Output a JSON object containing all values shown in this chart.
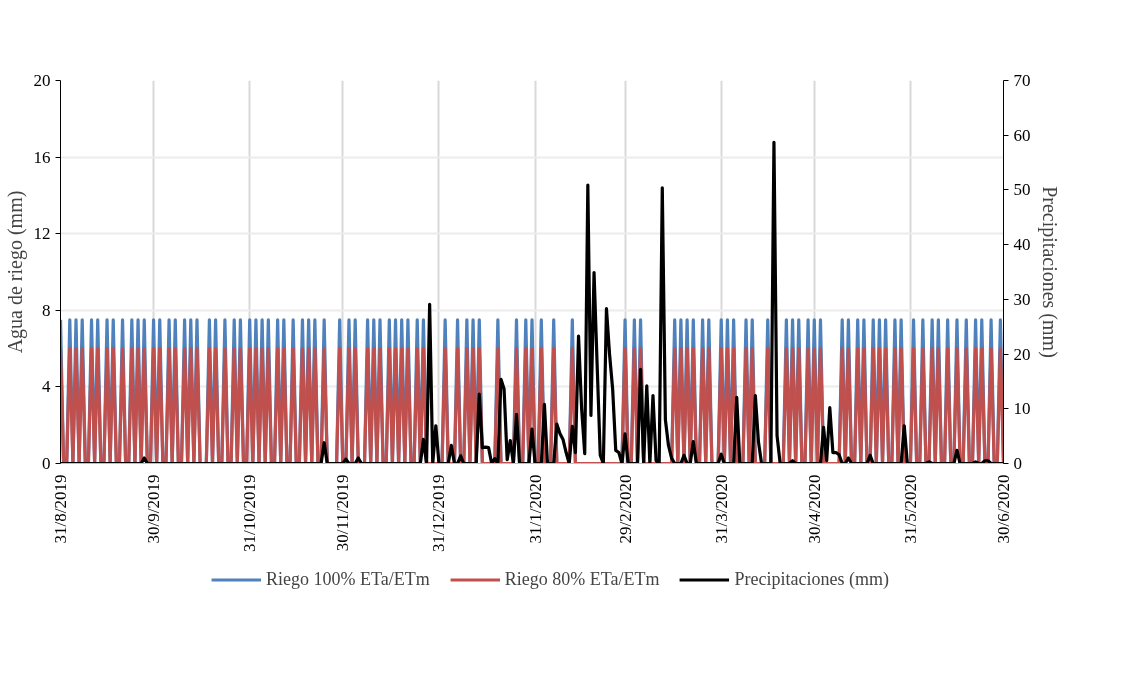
{
  "chart_data": {
    "type": "line",
    "ylabel": "Agua de riego (mm)",
    "y2label": "Precipitaciones (mm)",
    "xlim": [
      "2019-08-31",
      "2020-06-30"
    ],
    "xticks": [
      {
        "value": "2019-08-31",
        "label": "31/8/2019"
      },
      {
        "value": "2019-09-30",
        "label": "30/9/2019"
      },
      {
        "value": "2019-10-31",
        "label": "31/10/2019"
      },
      {
        "value": "2019-11-30",
        "label": "30/11/2019"
      },
      {
        "value": "2019-12-31",
        "label": "31/12/2019"
      },
      {
        "value": "2020-01-31",
        "label": "31/1/2020"
      },
      {
        "value": "2020-02-29",
        "label": "29/2/2020"
      },
      {
        "value": "2020-03-31",
        "label": "31/3/2020"
      },
      {
        "value": "2020-04-30",
        "label": "30/4/2020"
      },
      {
        "value": "2020-05-31",
        "label": "31/5/2020"
      },
      {
        "value": "2020-06-30",
        "label": "30/6/2020"
      }
    ],
    "ylim": [
      0,
      20
    ],
    "yticks": [
      0,
      4,
      8,
      12,
      16,
      20
    ],
    "y2lim": [
      0,
      70
    ],
    "y2ticks": [
      0,
      10,
      20,
      30,
      40,
      50,
      60,
      70
    ],
    "grid": true,
    "legend": "bottom",
    "marker": "none",
    "line_style": "solid",
    "x": [
      "2019-08-31",
      "2019-09-01",
      "2019-09-02",
      "2019-09-03",
      "2019-09-04",
      "2019-09-05",
      "2019-09-06",
      "2019-09-07",
      "2019-09-08",
      "2019-09-09",
      "2019-09-10",
      "2019-09-11",
      "2019-09-12",
      "2019-09-13",
      "2019-09-14",
      "2019-09-15",
      "2019-09-16",
      "2019-09-17",
      "2019-09-18",
      "2019-09-19",
      "2019-09-20",
      "2019-09-21",
      "2019-09-22",
      "2019-09-23",
      "2019-09-24",
      "2019-09-25",
      "2019-09-26",
      "2019-09-27",
      "2019-09-28",
      "2019-09-29",
      "2019-09-30",
      "2019-10-01",
      "2019-10-02",
      "2019-10-03",
      "2019-10-04",
      "2019-10-05",
      "2019-10-06",
      "2019-10-07",
      "2019-10-08",
      "2019-10-09",
      "2019-10-10",
      "2019-10-11",
      "2019-10-12",
      "2019-10-13",
      "2019-10-14",
      "2019-10-15",
      "2019-10-16",
      "2019-10-17",
      "2019-10-18",
      "2019-10-19",
      "2019-10-20",
      "2019-10-21",
      "2019-10-22",
      "2019-10-23",
      "2019-10-24",
      "2019-10-25",
      "2019-10-26",
      "2019-10-27",
      "2019-10-28",
      "2019-10-29",
      "2019-10-30",
      "2019-10-31",
      "2019-11-01",
      "2019-11-02",
      "2019-11-03",
      "2019-11-04",
      "2019-11-05",
      "2019-11-06",
      "2019-11-07",
      "2019-11-08",
      "2019-11-09",
      "2019-11-10",
      "2019-11-11",
      "2019-11-12",
      "2019-11-13",
      "2019-11-14",
      "2019-11-15",
      "2019-11-16",
      "2019-11-17",
      "2019-11-18",
      "2019-11-19",
      "2019-11-20",
      "2019-11-21",
      "2019-11-22",
      "2019-11-23",
      "2019-11-24",
      "2019-11-25",
      "2019-11-26",
      "2019-11-27",
      "2019-11-28",
      "2019-11-29",
      "2019-11-30",
      "2019-12-01",
      "2019-12-02",
      "2019-12-03",
      "2019-12-04",
      "2019-12-05",
      "2019-12-06",
      "2019-12-07",
      "2019-12-08",
      "2019-12-09",
      "2019-12-10",
      "2019-12-11",
      "2019-12-12",
      "2019-12-13",
      "2019-12-14",
      "2019-12-15",
      "2019-12-16",
      "2019-12-17",
      "2019-12-18",
      "2019-12-19",
      "2019-12-20",
      "2019-12-21",
      "2019-12-22",
      "2019-12-23",
      "2019-12-24",
      "2019-12-25",
      "2019-12-26",
      "2019-12-27",
      "2019-12-28",
      "2019-12-29",
      "2019-12-30",
      "2019-12-31",
      "2020-01-01",
      "2020-01-02",
      "2020-01-03",
      "2020-01-04",
      "2020-01-05",
      "2020-01-06",
      "2020-01-07",
      "2020-01-08",
      "2020-01-09",
      "2020-01-10",
      "2020-01-11",
      "2020-01-12",
      "2020-01-13",
      "2020-01-14",
      "2020-01-15",
      "2020-01-16",
      "2020-01-17",
      "2020-01-18",
      "2020-01-19",
      "2020-01-20",
      "2020-01-21",
      "2020-01-22",
      "2020-01-23",
      "2020-01-24",
      "2020-01-25",
      "2020-01-26",
      "2020-01-27",
      "2020-01-28",
      "2020-01-29",
      "2020-01-30",
      "2020-01-31",
      "2020-02-01",
      "2020-02-02",
      "2020-02-03",
      "2020-02-04",
      "2020-02-05",
      "2020-02-06",
      "2020-02-07",
      "2020-02-08",
      "2020-02-09",
      "2020-02-10",
      "2020-02-11",
      "2020-02-12",
      "2020-02-13",
      "2020-02-14",
      "2020-02-15",
      "2020-02-16",
      "2020-02-17",
      "2020-02-18",
      "2020-02-19",
      "2020-02-20",
      "2020-02-21",
      "2020-02-22",
      "2020-02-23",
      "2020-02-24",
      "2020-02-25",
      "2020-02-26",
      "2020-02-27",
      "2020-02-28",
      "2020-02-29",
      "2020-03-01",
      "2020-03-02",
      "2020-03-03",
      "2020-03-04",
      "2020-03-05",
      "2020-03-06",
      "2020-03-07",
      "2020-03-08",
      "2020-03-09",
      "2020-03-10",
      "2020-03-11",
      "2020-03-12",
      "2020-03-13",
      "2020-03-14",
      "2020-03-15",
      "2020-03-16",
      "2020-03-17",
      "2020-03-18",
      "2020-03-19",
      "2020-03-20",
      "2020-03-21",
      "2020-03-22",
      "2020-03-23",
      "2020-03-24",
      "2020-03-25",
      "2020-03-26",
      "2020-03-27",
      "2020-03-28",
      "2020-03-29",
      "2020-03-30",
      "2020-03-31",
      "2020-04-01",
      "2020-04-02",
      "2020-04-03",
      "2020-04-04",
      "2020-04-05",
      "2020-04-06",
      "2020-04-07",
      "2020-04-08",
      "2020-04-09",
      "2020-04-10",
      "2020-04-11",
      "2020-04-12",
      "2020-04-13",
      "2020-04-14",
      "2020-04-15",
      "2020-04-16",
      "2020-04-17",
      "2020-04-18",
      "2020-04-19",
      "2020-04-20",
      "2020-04-21",
      "2020-04-22",
      "2020-04-23",
      "2020-04-24",
      "2020-04-25",
      "2020-04-26",
      "2020-04-27",
      "2020-04-28",
      "2020-04-29",
      "2020-04-30",
      "2020-05-01",
      "2020-05-02",
      "2020-05-03",
      "2020-05-04",
      "2020-05-05",
      "2020-05-06",
      "2020-05-07",
      "2020-05-08",
      "2020-05-09",
      "2020-05-10",
      "2020-05-11",
      "2020-05-12",
      "2020-05-13",
      "2020-05-14",
      "2020-05-15",
      "2020-05-16",
      "2020-05-17",
      "2020-05-18",
      "2020-05-19",
      "2020-05-20",
      "2020-05-21",
      "2020-05-22",
      "2020-05-23",
      "2020-05-24",
      "2020-05-25",
      "2020-05-26",
      "2020-05-27",
      "2020-05-28",
      "2020-05-29",
      "2020-05-30",
      "2020-05-31",
      "2020-06-01",
      "2020-06-02",
      "2020-06-03",
      "2020-06-04",
      "2020-06-05",
      "2020-06-06",
      "2020-06-07",
      "2020-06-08",
      "2020-06-09",
      "2020-06-10",
      "2020-06-11",
      "2020-06-12",
      "2020-06-13",
      "2020-06-14",
      "2020-06-15",
      "2020-06-16",
      "2020-06-17",
      "2020-06-18",
      "2020-06-19",
      "2020-06-20",
      "2020-06-21",
      "2020-06-22",
      "2020-06-23",
      "2020-06-24",
      "2020-06-25",
      "2020-06-26",
      "2020-06-27",
      "2020-06-28",
      "2020-06-29",
      "2020-06-30"
    ],
    "series": [
      {
        "name": "Riego 100% ETa/ETm",
        "color": "#4f81bd",
        "values": [
          7.5,
          0,
          0,
          7.5,
          0,
          7.5,
          0,
          7.5,
          0,
          0,
          7.5,
          0,
          7.5,
          0,
          0,
          7.5,
          0,
          7.5,
          0,
          0,
          7.5,
          0,
          0,
          7.5,
          0,
          7.5,
          0,
          7.5,
          0,
          0,
          7.5,
          0,
          7.5,
          0,
          0,
          7.5,
          0,
          7.5,
          0,
          0,
          7.5,
          0,
          7.5,
          0,
          7.5,
          0,
          0,
          0,
          7.5,
          0,
          7.5,
          0,
          0,
          7.5,
          0,
          0,
          7.5,
          0,
          7.5,
          0,
          0,
          7.5,
          0,
          7.5,
          0,
          7.5,
          0,
          7.5,
          0,
          0,
          7.5,
          0,
          7.5,
          0,
          0,
          7.5,
          0,
          0,
          7.5,
          0,
          7.5,
          0,
          7.5,
          0,
          0,
          7.5,
          0,
          0,
          0,
          0,
          7.5,
          0,
          0,
          7.5,
          0,
          7.5,
          0,
          0,
          0,
          7.5,
          0,
          7.5,
          0,
          7.5,
          0,
          0,
          7.5,
          0,
          7.5,
          0,
          7.5,
          0,
          7.5,
          0,
          0,
          7.5,
          0,
          7.5,
          0,
          0,
          0,
          0,
          0,
          0,
          7.5,
          0,
          0,
          0,
          7.5,
          0,
          0,
          7.5,
          0,
          7.5,
          0,
          7.5,
          0,
          0,
          0,
          0,
          0,
          7.5,
          0,
          0,
          0,
          0,
          0,
          7.5,
          0,
          0,
          7.5,
          0,
          7.5,
          0,
          0,
          7.5,
          0,
          0,
          0,
          7.5,
          0,
          0,
          0,
          0,
          0,
          7.5,
          0,
          0,
          0,
          0,
          0,
          0,
          0,
          0,
          0,
          0,
          0,
          0,
          0,
          0,
          0,
          0,
          7.5,
          0,
          0,
          7.5,
          0,
          7.5,
          0,
          0,
          0,
          0,
          0,
          0,
          0,
          0,
          0,
          0,
          7.5,
          0,
          7.5,
          0,
          7.5,
          0,
          7.5,
          0,
          0,
          7.5,
          0,
          7.5,
          0,
          0,
          0,
          7.5,
          0,
          7.5,
          0,
          7.5,
          0,
          0,
          0,
          7.5,
          0,
          7.5,
          0,
          0,
          0,
          0,
          7.5,
          0,
          0,
          0,
          0,
          0,
          7.5,
          0,
          7.5,
          0,
          7.5,
          0,
          0,
          7.5,
          0,
          7.5,
          0,
          7.5,
          0,
          0,
          0,
          0,
          0,
          0,
          7.5,
          0,
          7.5,
          0,
          0,
          7.5,
          0,
          7.5,
          0,
          0,
          7.5,
          0,
          7.5,
          0,
          7.5,
          0,
          0,
          7.5,
          0,
          7.5,
          0,
          0,
          0,
          7.5,
          0,
          0,
          7.5,
          0,
          0,
          7.5,
          0,
          7.5,
          0,
          0,
          7.5,
          0,
          0,
          7.5,
          0,
          0,
          7.5,
          0,
          0,
          7.5,
          0,
          7.5,
          0,
          0,
          7.5,
          0,
          0,
          7.5,
          0
        ]
      },
      {
        "name": "Riego 80% ETa/ETm",
        "color": "#c0504d",
        "values": [
          6,
          0,
          0,
          6,
          0,
          6,
          0,
          6,
          0,
          0,
          6,
          0,
          6,
          0,
          0,
          6,
          0,
          6,
          0,
          0,
          6,
          0,
          0,
          6,
          0,
          6,
          0,
          6,
          0,
          0,
          6,
          0,
          6,
          0,
          0,
          6,
          0,
          6,
          0,
          0,
          6,
          0,
          6,
          0,
          6,
          0,
          0,
          0,
          6,
          0,
          6,
          0,
          0,
          6,
          0,
          0,
          6,
          0,
          6,
          0,
          0,
          6,
          0,
          6,
          0,
          6,
          0,
          6,
          0,
          0,
          6,
          0,
          6,
          0,
          0,
          6,
          0,
          0,
          6,
          0,
          6,
          0,
          6,
          0,
          0,
          6,
          0,
          0,
          0,
          0,
          6,
          0,
          0,
          6,
          0,
          6,
          0,
          0,
          0,
          6,
          0,
          6,
          0,
          6,
          0,
          0,
          6,
          0,
          6,
          0,
          6,
          0,
          6,
          0,
          0,
          6,
          0,
          6,
          0,
          0,
          0,
          0,
          0,
          0,
          6,
          0,
          0,
          0,
          6,
          0,
          0,
          6,
          0,
          6,
          0,
          6,
          0,
          0,
          0,
          0,
          0,
          6,
          0,
          0,
          0,
          0,
          0,
          6,
          0,
          0,
          6,
          0,
          6,
          0,
          0,
          6,
          0,
          0,
          0,
          6,
          0,
          0,
          0,
          0,
          0,
          6,
          0,
          0,
          0,
          0,
          0,
          0,
          0,
          0,
          0,
          0,
          0,
          0,
          0,
          0,
          0,
          0,
          6,
          0,
          0,
          6,
          0,
          6,
          0,
          0,
          0,
          0,
          0,
          0,
          0,
          0,
          0,
          0,
          6,
          0,
          6,
          0,
          6,
          0,
          6,
          0,
          0,
          6,
          0,
          6,
          0,
          0,
          0,
          6,
          0,
          6,
          0,
          6,
          0,
          0,
          0,
          6,
          0,
          6,
          0,
          0,
          0,
          0,
          6,
          0,
          0,
          0,
          0,
          0,
          6,
          0,
          6,
          0,
          6,
          0,
          0,
          6,
          0,
          6,
          0,
          6,
          0,
          0,
          0,
          0,
          0,
          0,
          6,
          0,
          6,
          0,
          0,
          6,
          0,
          6,
          0,
          0,
          6,
          0,
          6,
          0,
          6,
          0,
          0,
          6,
          0,
          6,
          0,
          0,
          0,
          6,
          0,
          0,
          6,
          0,
          0,
          6,
          0,
          6,
          0,
          0,
          6,
          0,
          0,
          6,
          0,
          0,
          6,
          0,
          0,
          6,
          0,
          6,
          0,
          0,
          6,
          0,
          0,
          6,
          0
        ]
      },
      {
        "name": "Precipitaciones (mm)",
        "color": "#000000",
        "axis": "y2",
        "values": [
          0,
          0,
          0,
          0,
          0,
          0,
          0,
          0,
          0,
          0,
          0,
          0,
          0,
          0,
          0,
          0,
          0,
          0,
          0,
          0,
          0,
          0,
          0,
          0,
          0,
          0,
          0,
          1,
          0,
          0,
          0,
          0,
          0,
          0,
          0,
          0,
          0,
          0,
          0,
          0,
          0,
          0,
          0,
          0,
          0,
          0,
          0,
          0,
          0,
          0,
          0,
          0,
          0,
          0,
          0,
          0,
          0,
          0,
          0,
          0,
          0,
          0,
          0,
          0,
          0,
          0,
          0,
          0,
          0,
          0,
          0,
          0,
          0,
          0,
          0,
          0,
          0,
          0,
          0,
          0,
          0,
          0,
          0,
          0,
          0,
          3.8,
          0,
          0,
          0,
          0,
          0,
          0,
          0.8,
          0,
          0,
          0,
          1,
          0,
          0,
          0,
          0,
          0,
          0,
          0,
          0,
          0,
          0,
          0,
          0,
          0,
          0,
          0,
          0,
          0,
          0,
          0,
          0,
          4.4,
          0,
          29.1,
          0,
          6.9,
          0,
          0,
          0,
          0,
          3.3,
          0,
          0,
          1.4,
          0,
          0,
          0,
          0,
          0,
          12.7,
          2.9,
          3,
          2.9,
          0,
          0.9,
          0,
          15.4,
          13.6,
          0.7,
          4.2,
          0,
          9,
          0,
          0,
          0,
          0,
          6.3,
          0,
          0,
          0,
          10.8,
          0,
          0,
          0,
          7.2,
          5.5,
          4.4,
          2,
          0,
          6.8,
          2,
          23.3,
          10,
          1.8,
          50.9,
          8.8,
          34.9,
          18,
          1.5,
          0,
          28.3,
          20,
          13.6,
          2.4,
          2,
          0,
          5.4,
          0,
          0,
          0,
          0,
          17.2,
          0,
          14.2,
          0,
          12.4,
          0.5,
          0,
          50.4,
          8,
          3.3,
          1,
          0,
          0,
          0,
          1.5,
          0,
          0,
          4,
          0,
          0,
          0,
          0,
          0,
          0,
          0,
          0,
          1.7,
          0,
          0,
          0,
          0,
          12.1,
          0,
          0,
          0,
          0,
          0,
          12.4,
          4,
          0,
          0,
          0,
          0,
          58.7,
          5.1,
          0,
          0,
          0,
          0,
          0.5,
          0,
          0,
          0,
          0,
          0,
          0,
          0,
          0,
          0,
          6.6,
          0.5,
          10.2,
          2,
          2,
          1.6,
          0,
          0,
          1,
          0,
          0,
          0,
          0,
          0,
          0,
          1.5,
          0,
          0,
          0,
          0,
          0,
          0,
          0,
          0,
          0,
          0,
          6.9,
          0,
          0,
          0,
          0,
          0,
          0,
          0,
          0.3,
          0,
          0,
          0,
          0,
          0,
          0,
          0,
          0,
          2.4,
          0,
          0,
          0,
          0,
          0,
          0.3,
          0,
          0,
          0.5,
          0.5,
          0,
          0,
          0,
          0,
          0
        ]
      }
    ]
  }
}
